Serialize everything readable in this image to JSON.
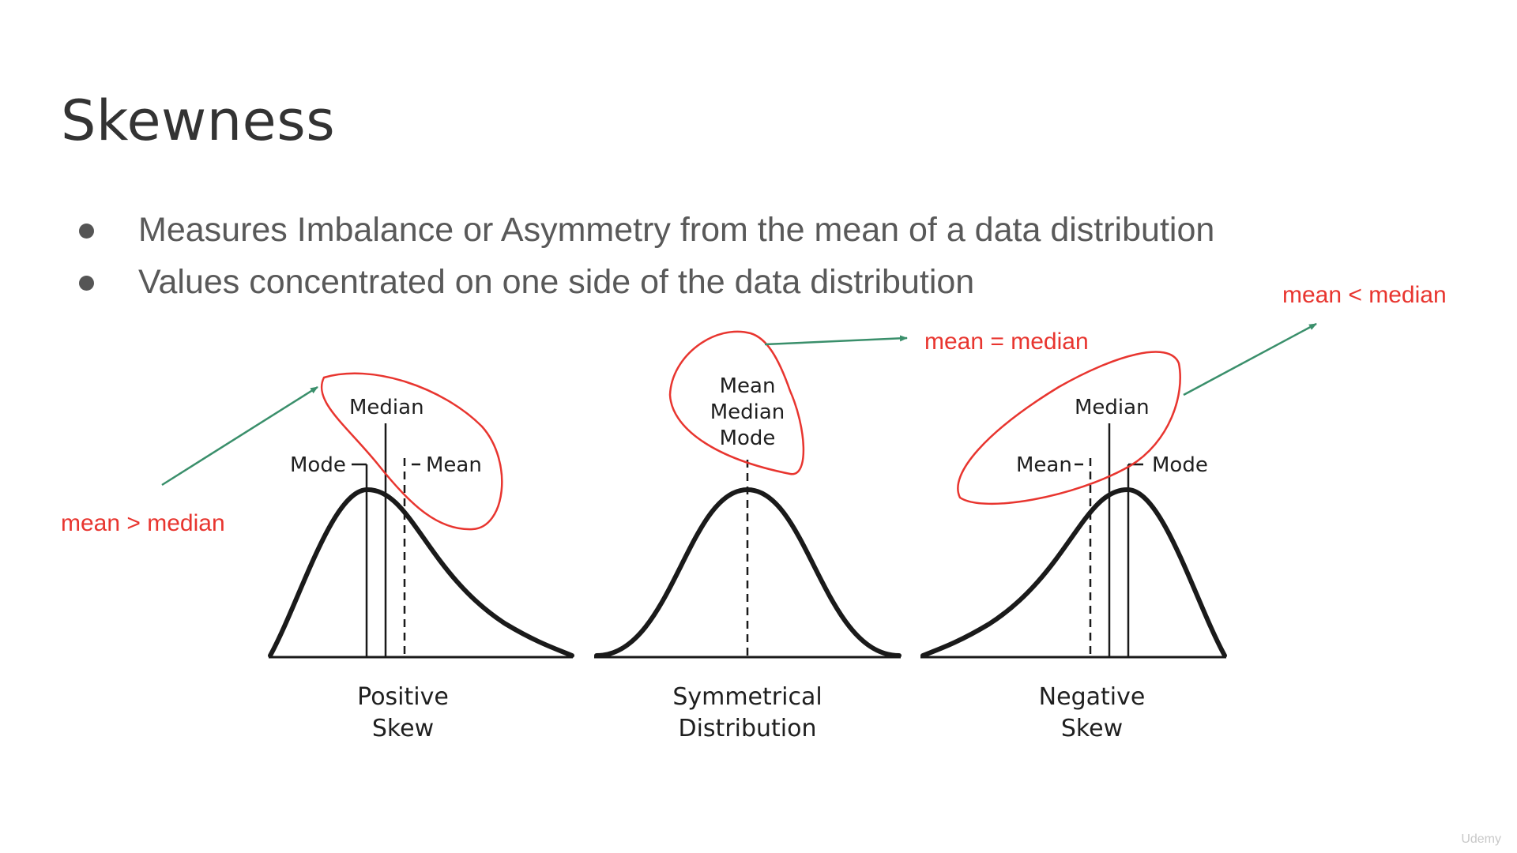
{
  "slide": {
    "title": "Skewness",
    "bullets": [
      "Measures Imbalance or Asymmetry from the mean of a data distribution",
      "Values concentrated on one side of the data distribution"
    ]
  },
  "diagrams": {
    "positive": {
      "caption_line1": "Positive",
      "caption_line2": "Skew",
      "mode_label": "Mode",
      "median_label": "Median",
      "mean_label": "Mean"
    },
    "symmetrical": {
      "caption_line1": "Symmetrical",
      "caption_line2": "Distribution",
      "mean_label": "Mean",
      "median_label": "Median",
      "mode_label": "Mode"
    },
    "negative": {
      "caption_line1": "Negative",
      "caption_line2": "Skew",
      "mean_label": "Mean",
      "median_label": "Median",
      "mode_label": "Mode"
    }
  },
  "annotations": {
    "positive": "mean > median",
    "symmetrical": "mean = median",
    "negative": "mean < median"
  },
  "colors": {
    "annotation_text": "#e8352f",
    "annotation_circle": "#e8352f",
    "arrow": "#3a8f6b",
    "curve": "#1a1a1a"
  },
  "watermark": "Udemy"
}
